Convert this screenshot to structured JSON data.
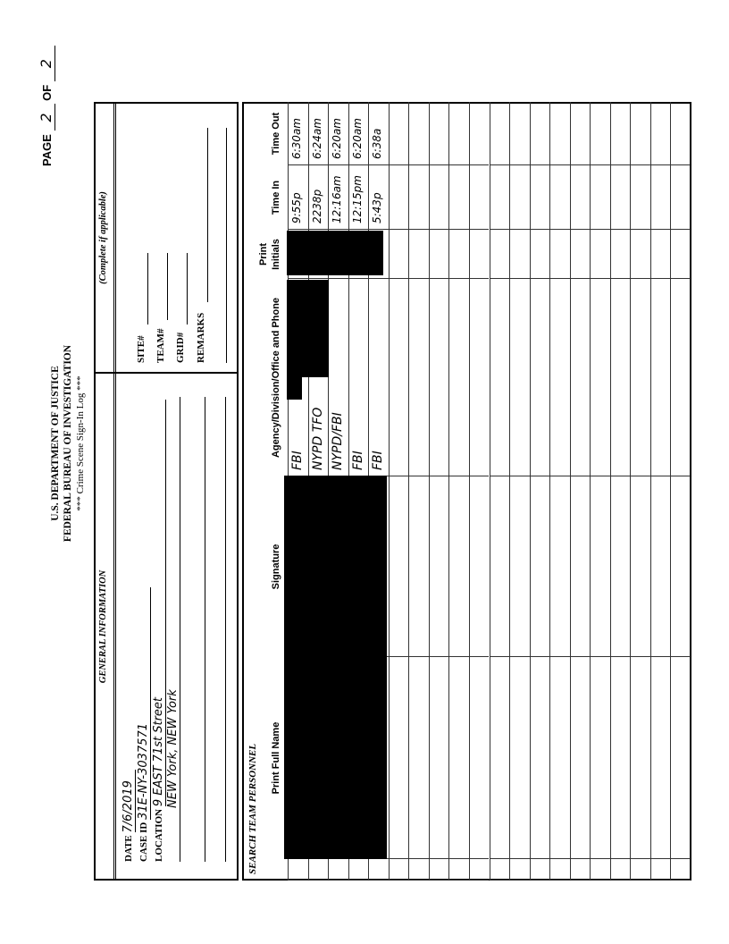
{
  "header": {
    "line1": "U.S. DEPARTMENT OF JUSTICE",
    "line2": "FEDERAL BUREAU OF INVESTIGATION",
    "line3": "*** Crime Scene Sign-In Log ***",
    "page_label": "PAGE",
    "page_number": "2",
    "of_label": "OF",
    "page_total": "2"
  },
  "general": {
    "title": "GENERAL INFORMATION",
    "date_label": "DATE",
    "date_value": "7/6/2019",
    "case_id_label": "CASE ID",
    "case_id_value": "31E-NY-3037571",
    "location_label": "LOCATION",
    "location_value": "9 EAST 71st Street",
    "location_value_2": "NEW York, NEW York"
  },
  "optional": {
    "title": "(Complete if applicable)",
    "site_label": "SITE#",
    "team_label": "TEAM#",
    "grid_label": "GRID#",
    "remarks_label": "REMARKS"
  },
  "personnel": {
    "title": "SEARCH TEAM PERSONNEL",
    "columns": {
      "name": "Print Full Name",
      "signature": "Signature",
      "agency": "Agency/Division/Office and Phone",
      "initials_top": "Print",
      "initials": "Initials",
      "time_in": "Time In",
      "time_out": "Time Out"
    },
    "rows": [
      {
        "agency": "FBI",
        "time_in": "9:55p",
        "time_out": "6:30am"
      },
      {
        "agency": "NYPD TFO",
        "time_in": "2238p",
        "time_out": "6:24am"
      },
      {
        "agency": "NYPD/FBI",
        "time_in": "12:16am",
        "time_out": "6:20am"
      },
      {
        "agency": "FBI",
        "time_in": "12:15pm",
        "time_out": "6:20am"
      },
      {
        "agency": "FBI",
        "time_in": "5:43p",
        "time_out": "6:38a"
      }
    ],
    "total_rows": 20,
    "redacted": [
      "name",
      "signature",
      "initials",
      "agency-phone"
    ]
  }
}
